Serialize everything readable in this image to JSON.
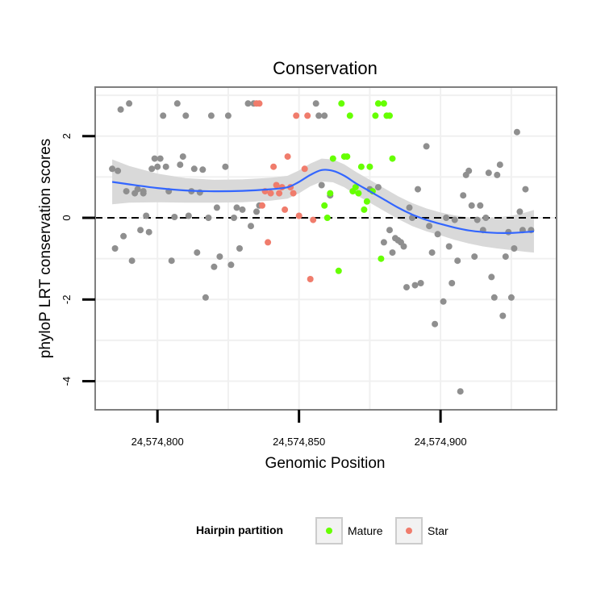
{
  "chart_data": {
    "type": "scatter",
    "title": "Conservation",
    "xlabel": "Genomic Position",
    "ylabel": "phyloP LRT conservation scores",
    "xlim": [
      24574778,
      24574941
    ],
    "ylim": [
      -4.7,
      3.2
    ],
    "x_ticks": [
      24574800,
      24574850,
      24574900
    ],
    "x_tick_labels": [
      "24,574,800",
      "24,574,850",
      "24,574,900"
    ],
    "y_ticks": [
      2,
      0,
      -2,
      -4
    ],
    "y_tick_labels": [
      "2",
      "0",
      "-2",
      "-4"
    ],
    "reference_line": {
      "y": 0,
      "style": "dashed"
    },
    "grid": true,
    "legend": {
      "title": "Hairpin partition",
      "position": "bottom",
      "entries": [
        {
          "name": "Mature",
          "color": "#66ff00"
        },
        {
          "name": "Star",
          "color": "#f07c6c"
        }
      ]
    },
    "colors": {
      "other": "#8f8f8f",
      "Mature": "#66ff00",
      "Star": "#f07c6c",
      "smooth_line": "#3366ff",
      "ribbon": "#d9d9d9"
    },
    "series": [
      {
        "name": "Other",
        "points": [
          [
            24574784,
            1.2
          ],
          [
            24574786,
            1.15
          ],
          [
            24574785,
            -0.75
          ],
          [
            24574787,
            2.65
          ],
          [
            24574788,
            -0.45
          ],
          [
            24574789,
            0.65
          ],
          [
            24574790,
            2.8
          ],
          [
            24574791,
            -1.05
          ],
          [
            24574792,
            0.6
          ],
          [
            24574793,
            0.7
          ],
          [
            24574794,
            -0.3
          ],
          [
            24574795,
            0.6
          ],
          [
            24574795,
            0.65
          ],
          [
            24574796,
            0.05
          ],
          [
            24574797,
            -0.35
          ],
          [
            24574798,
            1.2
          ],
          [
            24574799,
            1.45
          ],
          [
            24574800,
            1.25
          ],
          [
            24574801,
            1.45
          ],
          [
            24574802,
            2.5
          ],
          [
            24574803,
            1.25
          ],
          [
            24574804,
            0.65
          ],
          [
            24574805,
            -1.05
          ],
          [
            24574806,
            0.02
          ],
          [
            24574807,
            2.8
          ],
          [
            24574808,
            1.3
          ],
          [
            24574809,
            1.5
          ],
          [
            24574810,
            2.5
          ],
          [
            24574811,
            0.05
          ],
          [
            24574812,
            0.65
          ],
          [
            24574813,
            1.2
          ],
          [
            24574814,
            -0.85
          ],
          [
            24574815,
            0.62
          ],
          [
            24574816,
            1.18
          ],
          [
            24574817,
            -1.95
          ],
          [
            24574818,
            0.0
          ],
          [
            24574819,
            2.5
          ],
          [
            24574820,
            -1.2
          ],
          [
            24574821,
            0.25
          ],
          [
            24574822,
            -0.95
          ],
          [
            24574824,
            1.25
          ],
          [
            24574825,
            2.5
          ],
          [
            24574826,
            -1.15
          ],
          [
            24574827,
            0.0
          ],
          [
            24574828,
            0.25
          ],
          [
            24574829,
            -0.75
          ],
          [
            24574830,
            0.2
          ],
          [
            24574832,
            2.8
          ],
          [
            24574833,
            -0.2
          ],
          [
            24574834,
            2.8
          ],
          [
            24574835,
            0.15
          ],
          [
            24574836,
            0.3
          ],
          [
            24574856,
            2.8
          ],
          [
            24574857,
            2.5
          ],
          [
            24574858,
            0.8
          ],
          [
            24574859,
            2.5
          ],
          [
            24574861,
            0.55
          ],
          [
            24574875,
            0.7
          ],
          [
            24574878,
            0.75
          ],
          [
            24574880,
            -0.6
          ],
          [
            24574882,
            -0.3
          ],
          [
            24574883,
            -0.85
          ],
          [
            24574884,
            -0.5
          ],
          [
            24574885,
            -0.55
          ],
          [
            24574886,
            -0.6
          ],
          [
            24574887,
            -0.7
          ],
          [
            24574888,
            -1.7
          ],
          [
            24574889,
            0.25
          ],
          [
            24574890,
            0.0
          ],
          [
            24574891,
            -1.65
          ],
          [
            24574892,
            0.7
          ],
          [
            24574893,
            -1.6
          ],
          [
            24574895,
            1.75
          ],
          [
            24574896,
            -0.2
          ],
          [
            24574897,
            -0.85
          ],
          [
            24574898,
            -2.6
          ],
          [
            24574899,
            -0.4
          ],
          [
            24574901,
            -2.05
          ],
          [
            24574902,
            0.0
          ],
          [
            24574903,
            -0.7
          ],
          [
            24574904,
            -1.6
          ],
          [
            24574905,
            -0.05
          ],
          [
            24574906,
            -1.05
          ],
          [
            24574907,
            -4.25
          ],
          [
            24574908,
            0.55
          ],
          [
            24574909,
            1.05
          ],
          [
            24574910,
            1.15
          ],
          [
            24574911,
            0.3
          ],
          [
            24574912,
            -0.95
          ],
          [
            24574913,
            -0.05
          ],
          [
            24574914,
            0.3
          ],
          [
            24574915,
            -0.3
          ],
          [
            24574916,
            0.0
          ],
          [
            24574917,
            1.1
          ],
          [
            24574918,
            -1.45
          ],
          [
            24574919,
            -1.95
          ],
          [
            24574920,
            1.05
          ],
          [
            24574921,
            1.3
          ],
          [
            24574922,
            -2.4
          ],
          [
            24574923,
            -0.95
          ],
          [
            24574924,
            -0.35
          ],
          [
            24574925,
            -1.95
          ],
          [
            24574926,
            -0.75
          ],
          [
            24574927,
            2.1
          ],
          [
            24574928,
            0.15
          ],
          [
            24574929,
            -0.3
          ],
          [
            24574930,
            0.7
          ],
          [
            24574932,
            -0.3
          ]
        ]
      },
      {
        "name": "Star",
        "points": [
          [
            24574835,
            2.8
          ],
          [
            24574836,
            2.8
          ],
          [
            24574837,
            0.3
          ],
          [
            24574838,
            0.65
          ],
          [
            24574839,
            -0.6
          ],
          [
            24574840,
            0.6
          ],
          [
            24574841,
            1.25
          ],
          [
            24574842,
            0.8
          ],
          [
            24574843,
            0.6
          ],
          [
            24574844,
            0.75
          ],
          [
            24574845,
            0.2
          ],
          [
            24574846,
            1.5
          ],
          [
            24574847,
            0.75
          ],
          [
            24574848,
            0.6
          ],
          [
            24574849,
            2.5
          ],
          [
            24574850,
            0.05
          ],
          [
            24574852,
            1.2
          ],
          [
            24574853,
            2.5
          ],
          [
            24574854,
            -1.5
          ],
          [
            24574855,
            -0.05
          ]
        ]
      },
      {
        "name": "Mature",
        "points": [
          [
            24574859,
            0.3
          ],
          [
            24574860,
            0.0
          ],
          [
            24574861,
            0.6
          ],
          [
            24574862,
            1.45
          ],
          [
            24574864,
            -1.3
          ],
          [
            24574865,
            2.8
          ],
          [
            24574866,
            1.5
          ],
          [
            24574867,
            1.5
          ],
          [
            24574868,
            2.5
          ],
          [
            24574869,
            0.65
          ],
          [
            24574870,
            0.75
          ],
          [
            24574871,
            0.6
          ],
          [
            24574872,
            1.25
          ],
          [
            24574873,
            0.2
          ],
          [
            24574874,
            0.4
          ],
          [
            24574875,
            1.25
          ],
          [
            24574876,
            0.65
          ],
          [
            24574877,
            2.5
          ],
          [
            24574878,
            2.8
          ],
          [
            24574879,
            -1.0
          ],
          [
            24574880,
            2.8
          ],
          [
            24574881,
            2.5
          ],
          [
            24574882,
            2.5
          ],
          [
            24574883,
            1.45
          ]
        ]
      }
    ],
    "smooth": {
      "x": [
        24574784,
        24574790,
        24574800,
        24574810,
        24574820,
        24574830,
        24574840,
        24574846,
        24574850,
        24574854,
        24574858,
        24574862,
        24574866,
        24574870,
        24574875,
        24574880,
        24574885,
        24574890,
        24574895,
        24574900,
        24574905,
        24574910,
        24574915,
        24574920,
        24574925,
        24574930,
        24574933
      ],
      "y": [
        0.88,
        0.82,
        0.73,
        0.67,
        0.65,
        0.66,
        0.7,
        0.75,
        0.88,
        1.05,
        1.17,
        1.15,
        1.03,
        0.85,
        0.65,
        0.45,
        0.25,
        0.08,
        -0.05,
        -0.15,
        -0.24,
        -0.31,
        -0.35,
        -0.37,
        -0.37,
        -0.35,
        -0.33
      ],
      "band": [
        0.55,
        0.45,
        0.35,
        0.3,
        0.28,
        0.28,
        0.28,
        0.28,
        0.28,
        0.28,
        0.28,
        0.28,
        0.28,
        0.28,
        0.28,
        0.28,
        0.28,
        0.28,
        0.28,
        0.28,
        0.3,
        0.32,
        0.35,
        0.38,
        0.42,
        0.48,
        0.52
      ]
    }
  }
}
